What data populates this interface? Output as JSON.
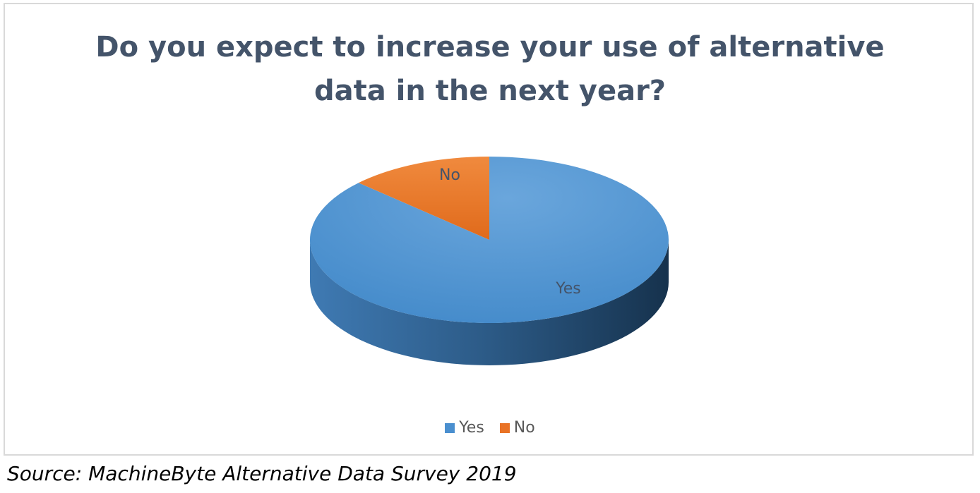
{
  "chart_data": {
    "type": "pie",
    "title_lines": [
      "Do you expect to increase your use of alternative",
      "data in the next year?"
    ],
    "categories": [
      "Yes",
      "No"
    ],
    "values": [
      87,
      13
    ],
    "colors": [
      "#4a8fcf",
      "#e97326"
    ],
    "slice_labels": [
      "Yes",
      "No"
    ],
    "legend": {
      "placement": "bottom",
      "items": [
        {
          "label": "Yes",
          "color": "#4a8fcf"
        },
        {
          "label": "No",
          "color": "#e97326"
        }
      ]
    },
    "style": "3d"
  },
  "source": "Source: MachineByte Alternative Data Survey 2019"
}
